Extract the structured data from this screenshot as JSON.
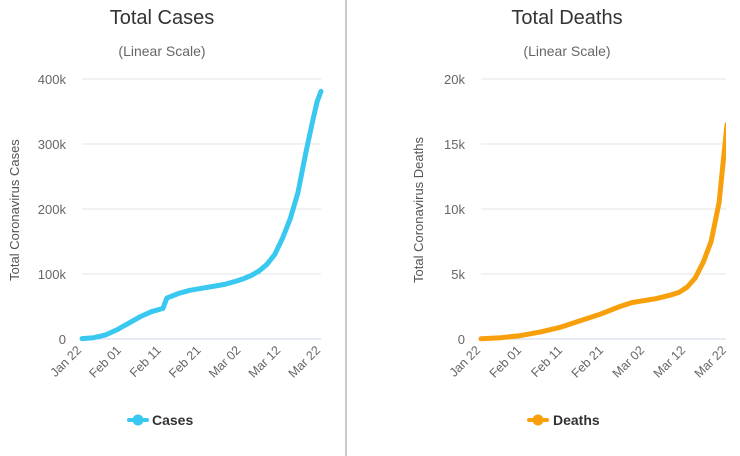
{
  "colors": {
    "cases": "#39c8f0",
    "deaths": "#f7a00b",
    "grid": "#e6e6e6",
    "axis": "#ccd6eb"
  },
  "chart_data": [
    {
      "type": "line",
      "title": "Total Cases",
      "subtitle": "(Linear Scale)",
      "xlabel": "",
      "ylabel": "Total Coronavirus Cases",
      "ylim": [
        0,
        400000
      ],
      "yticks": [
        0,
        100000,
        200000,
        300000,
        400000
      ],
      "ytick_labels": [
        "0",
        "100k",
        "200k",
        "300k",
        "400k"
      ],
      "xticks": [
        "Jan 22",
        "Feb 01",
        "Feb 11",
        "Feb 21",
        "Mar 02",
        "Mar 12",
        "Mar 22"
      ],
      "x_range_days": [
        0,
        62
      ],
      "legend": "bottom-center",
      "series": [
        {
          "name": "Cases",
          "x": [
            0,
            3,
            6,
            9,
            12,
            15,
            18,
            21,
            22,
            25,
            28,
            31,
            34,
            37,
            40,
            42,
            44,
            46,
            48,
            50,
            52,
            54,
            56,
            58,
            60,
            61,
            62
          ],
          "y": [
            600,
            2000,
            6000,
            14000,
            24000,
            34000,
            42000,
            47000,
            63000,
            70000,
            75000,
            78000,
            81000,
            84000,
            89000,
            93000,
            98000,
            105000,
            115000,
            130000,
            155000,
            185000,
            225000,
            285000,
            340000,
            365000,
            381000
          ]
        }
      ]
    },
    {
      "type": "line",
      "title": "Total Deaths",
      "subtitle": "(Linear Scale)",
      "xlabel": "",
      "ylabel": "Total Coronavirus Deaths",
      "ylim": [
        0,
        20000
      ],
      "yticks": [
        0,
        5000,
        10000,
        15000,
        20000
      ],
      "ytick_labels": [
        "0",
        "5k",
        "10k",
        "15k",
        "20k"
      ],
      "xticks": [
        "Jan 22",
        "Feb 01",
        "Feb 11",
        "Feb 21",
        "Mar 02",
        "Mar 12",
        "Mar 22"
      ],
      "x_range_days": [
        0,
        62
      ],
      "legend": "bottom-center",
      "series": [
        {
          "name": "Deaths",
          "x": [
            0,
            5,
            10,
            15,
            20,
            25,
            30,
            35,
            38,
            40,
            42,
            44,
            46,
            48,
            50,
            52,
            54,
            56,
            58,
            60,
            61,
            62
          ],
          "y": [
            17,
            100,
            260,
            550,
            900,
            1400,
            1900,
            2500,
            2800,
            2900,
            3000,
            3100,
            3250,
            3400,
            3600,
            4000,
            4700,
            5900,
            7500,
            10500,
            13500,
            16500
          ]
        }
      ]
    }
  ]
}
